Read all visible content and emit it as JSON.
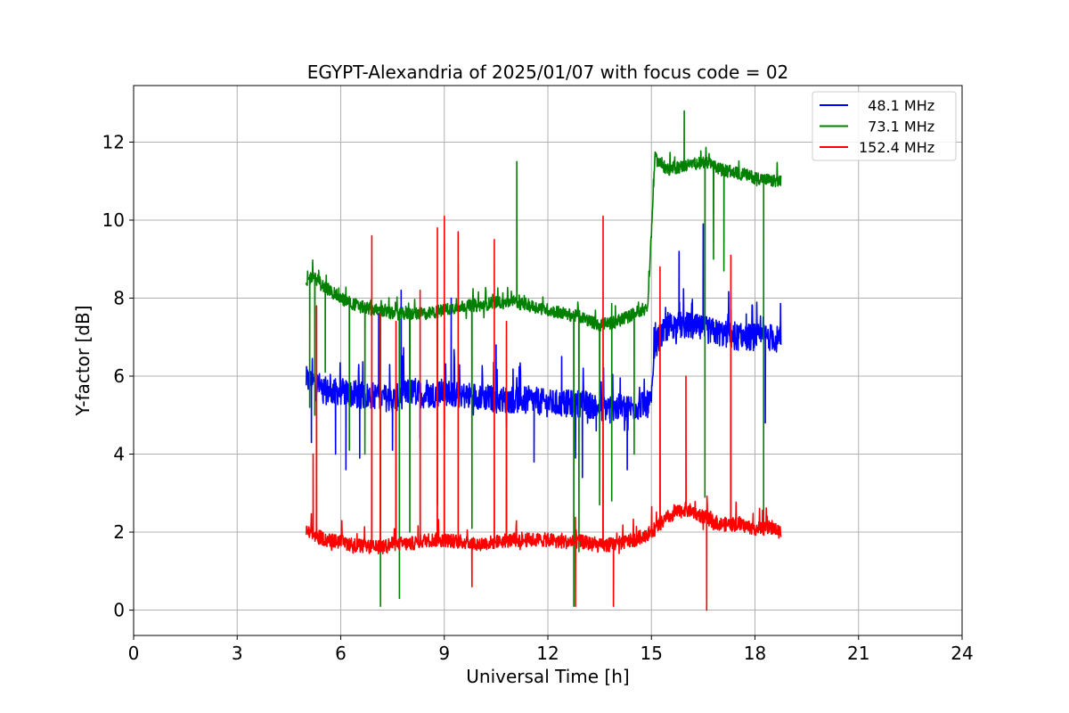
{
  "chart_data": {
    "type": "line",
    "title": "EGYPT-Alexandria of 2025/01/07 with focus code = 02",
    "xlabel": "Universal Time [h]",
    "ylabel": "Y-factor [dB]",
    "xlim": [
      0,
      24
    ],
    "ylim": [
      -0.65,
      13.45
    ],
    "xticks": [
      0,
      3,
      6,
      9,
      12,
      15,
      18,
      21,
      24
    ],
    "yticks": [
      0,
      2,
      4,
      6,
      8,
      10,
      12
    ],
    "grid": true,
    "legend_position": "top-right",
    "series": [
      {
        "name": "  48.1 MHz",
        "color": "#0000ff",
        "x": [
          5.0,
          5.3,
          5.6,
          6.0,
          6.5,
          7.0,
          7.5,
          8.0,
          8.5,
          9.0,
          9.5,
          10.0,
          10.5,
          11.0,
          11.5,
          12.0,
          12.5,
          13.0,
          13.5,
          14.0,
          14.5,
          15.0,
          15.1,
          15.5,
          16.0,
          16.5,
          17.0,
          17.5,
          18.0,
          18.5,
          18.75
        ],
        "values": [
          5.9,
          5.8,
          5.6,
          5.6,
          5.5,
          5.5,
          5.4,
          5.6,
          5.5,
          5.6,
          5.5,
          5.5,
          5.4,
          5.4,
          5.4,
          5.3,
          5.3,
          5.3,
          5.2,
          5.2,
          5.2,
          5.3,
          6.8,
          7.3,
          7.3,
          7.2,
          7.1,
          7.0,
          7.0,
          7.0,
          6.9
        ],
        "noise": 0.35,
        "spikes": [
          [
            5.15,
            4.3
          ],
          [
            5.85,
            4.0
          ],
          [
            6.15,
            3.6
          ],
          [
            6.55,
            3.9
          ],
          [
            7.1,
            7.6
          ],
          [
            7.5,
            4.1
          ],
          [
            7.75,
            8.2
          ],
          [
            8.3,
            4.4
          ],
          [
            9.0,
            4.1
          ],
          [
            9.2,
            8.0
          ],
          [
            10.5,
            6.8
          ],
          [
            10.8,
            4.7
          ],
          [
            11.6,
            3.8
          ],
          [
            12.4,
            6.5
          ],
          [
            12.8,
            3.9
          ],
          [
            13.0,
            3.4
          ],
          [
            13.4,
            4.6
          ],
          [
            13.8,
            4.8
          ],
          [
            14.3,
            3.6
          ],
          [
            15.8,
            9.2
          ],
          [
            16.5,
            9.9
          ],
          [
            17.3,
            7.7
          ],
          [
            18.3,
            4.8
          ]
        ]
      },
      {
        "name": "  73.1 MHz",
        "color": "#008000",
        "x": [
          5.0,
          5.2,
          5.5,
          6.0,
          6.5,
          7.0,
          7.5,
          8.0,
          8.5,
          9.0,
          9.5,
          10.0,
          10.5,
          11.0,
          11.5,
          12.0,
          12.5,
          13.0,
          13.5,
          14.0,
          14.5,
          14.9,
          15.1,
          15.3,
          15.5,
          16.0,
          16.5,
          17.0,
          17.5,
          18.0,
          18.5,
          18.75
        ],
        "values": [
          8.4,
          8.6,
          8.3,
          8.0,
          7.8,
          7.7,
          7.6,
          7.6,
          7.6,
          7.7,
          7.8,
          7.8,
          7.9,
          7.9,
          7.8,
          7.7,
          7.6,
          7.5,
          7.3,
          7.4,
          7.6,
          7.8,
          11.6,
          11.4,
          11.3,
          11.4,
          11.5,
          11.3,
          11.2,
          11.1,
          11.0,
          11.0
        ],
        "noise": 0.16,
        "spikes": [
          [
            5.1,
            5.2
          ],
          [
            5.25,
            5.0
          ],
          [
            5.55,
            6.1
          ],
          [
            6.25,
            4.1
          ],
          [
            6.7,
            4.0
          ],
          [
            7.15,
            0.1
          ],
          [
            7.7,
            0.3
          ],
          [
            8.0,
            2.0
          ],
          [
            8.8,
            2.7
          ],
          [
            9.4,
            8.9
          ],
          [
            9.8,
            2.1
          ],
          [
            11.1,
            11.5
          ],
          [
            12.75,
            0.1
          ],
          [
            12.9,
            1.5
          ],
          [
            13.5,
            2.7
          ],
          [
            13.85,
            2.8
          ],
          [
            14.5,
            4.0
          ],
          [
            15.95,
            12.8
          ],
          [
            16.55,
            2.9
          ],
          [
            16.8,
            9.0
          ],
          [
            17.1,
            8.7
          ],
          [
            18.25,
            2.1
          ]
        ]
      },
      {
        "name": "152.4 MHz",
        "color": "#ff0000",
        "x": [
          5.0,
          5.3,
          5.6,
          6.0,
          6.5,
          7.0,
          7.5,
          8.0,
          8.5,
          9.0,
          9.5,
          10.0,
          10.5,
          11.0,
          11.5,
          12.0,
          12.5,
          13.0,
          13.5,
          14.0,
          14.5,
          15.0,
          15.5,
          16.0,
          16.5,
          17.0,
          17.5,
          18.0,
          18.5,
          18.75
        ],
        "values": [
          2.0,
          1.9,
          1.8,
          1.75,
          1.65,
          1.6,
          1.7,
          1.7,
          1.8,
          1.8,
          1.75,
          1.7,
          1.75,
          1.8,
          1.8,
          1.8,
          1.75,
          1.75,
          1.65,
          1.7,
          1.8,
          2.0,
          2.4,
          2.6,
          2.4,
          2.2,
          2.2,
          2.1,
          2.1,
          2.0
        ],
        "noise": 0.18,
        "spikes": [
          [
            5.2,
            4.0
          ],
          [
            5.3,
            7.8
          ],
          [
            6.9,
            9.6
          ],
          [
            7.15,
            7.6
          ],
          [
            7.6,
            7.4
          ],
          [
            8.3,
            8.2
          ],
          [
            8.8,
            9.8
          ],
          [
            9.0,
            10.1
          ],
          [
            9.4,
            9.7
          ],
          [
            9.8,
            0.6
          ],
          [
            10.45,
            9.5
          ],
          [
            10.8,
            7.4
          ],
          [
            12.8,
            0.1
          ],
          [
            13.6,
            10.1
          ],
          [
            13.9,
            0.1
          ],
          [
            15.25,
            8.8
          ],
          [
            16.0,
            6.0
          ],
          [
            16.6,
            0.0
          ],
          [
            17.3,
            9.1
          ]
        ]
      }
    ]
  }
}
